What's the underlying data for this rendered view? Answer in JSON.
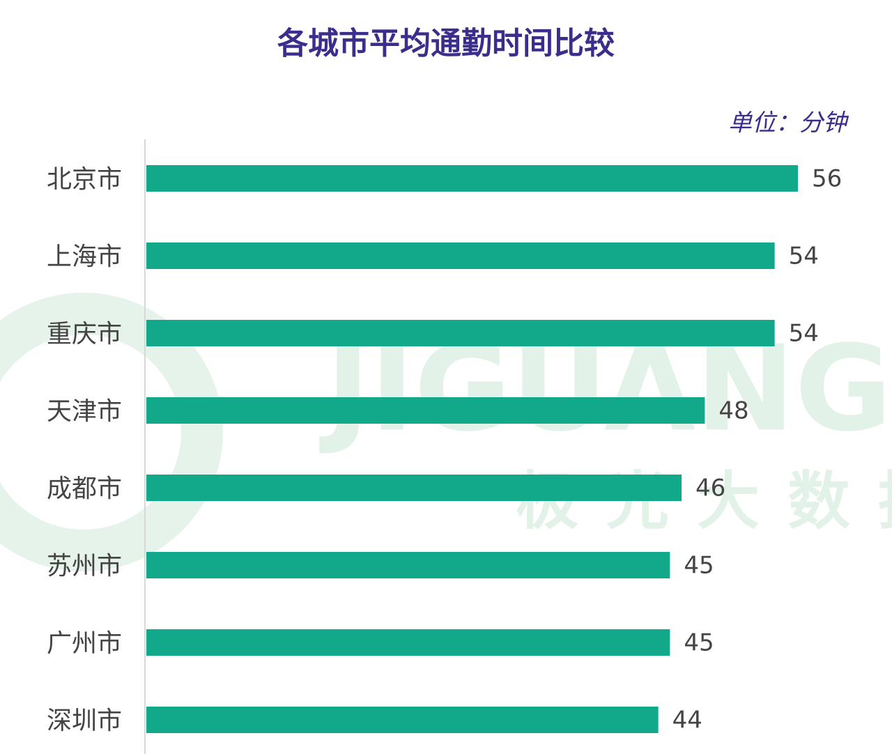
{
  "chart_data": {
    "type": "bar",
    "orientation": "horizontal",
    "title": "各城市平均通勤时间比较",
    "unit_label": "单位：分钟",
    "watermark": [
      "JIGUANG",
      "极光大数据"
    ],
    "categories": [
      "北京市",
      "上海市",
      "重庆市",
      "天津市",
      "成都市",
      "苏州市",
      "广州市",
      "深圳市"
    ],
    "values": [
      56,
      54,
      54,
      48,
      46,
      45,
      45,
      44
    ],
    "color": "#12a88a"
  }
}
